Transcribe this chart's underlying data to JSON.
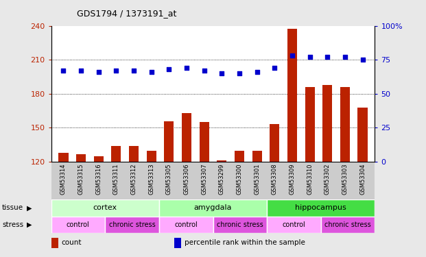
{
  "title": "GDS1794 / 1373191_at",
  "samples": [
    "GSM53314",
    "GSM53315",
    "GSM53316",
    "GSM53311",
    "GSM53312",
    "GSM53313",
    "GSM53305",
    "GSM53306",
    "GSM53307",
    "GSM53299",
    "GSM53300",
    "GSM53301",
    "GSM53308",
    "GSM53309",
    "GSM53310",
    "GSM53302",
    "GSM53303",
    "GSM53304"
  ],
  "counts": [
    128,
    127,
    125,
    134,
    134,
    130,
    156,
    163,
    155,
    121,
    130,
    130,
    153,
    237,
    186,
    188,
    186,
    168
  ],
  "percentiles": [
    67,
    67,
    66,
    67,
    67,
    66,
    68,
    69,
    67,
    65,
    65,
    66,
    69,
    78,
    77,
    77,
    77,
    75
  ],
  "bar_color": "#bb2200",
  "dot_color": "#0000cc",
  "ylim_left": [
    120,
    240
  ],
  "ylim_right": [
    0,
    100
  ],
  "yticks_left": [
    120,
    150,
    180,
    210,
    240
  ],
  "yticks_right": [
    0,
    25,
    50,
    75,
    100
  ],
  "tissue_groups": [
    {
      "label": "cortex",
      "start": 0,
      "end": 6,
      "color": "#ccffcc"
    },
    {
      "label": "amygdala",
      "start": 6,
      "end": 12,
      "color": "#aaffaa"
    },
    {
      "label": "hippocampus",
      "start": 12,
      "end": 18,
      "color": "#44dd44"
    }
  ],
  "stress_groups": [
    {
      "label": "control",
      "start": 0,
      "end": 3,
      "color": "#ffaaff"
    },
    {
      "label": "chronic stress",
      "start": 3,
      "end": 6,
      "color": "#dd55dd"
    },
    {
      "label": "control",
      "start": 6,
      "end": 9,
      "color": "#ffaaff"
    },
    {
      "label": "chronic stress",
      "start": 9,
      "end": 12,
      "color": "#dd55dd"
    },
    {
      "label": "control",
      "start": 12,
      "end": 15,
      "color": "#ffaaff"
    },
    {
      "label": "chronic stress",
      "start": 15,
      "end": 18,
      "color": "#dd55dd"
    }
  ],
  "legend_items": [
    {
      "label": "count",
      "color": "#bb2200"
    },
    {
      "label": "percentile rank within the sample",
      "color": "#0000cc"
    }
  ],
  "sample_bg": "#cccccc",
  "fig_bg": "#e8e8e8",
  "plot_bg": "#ffffff",
  "grid_color": "#000000",
  "right_axis_label_100": "100%"
}
